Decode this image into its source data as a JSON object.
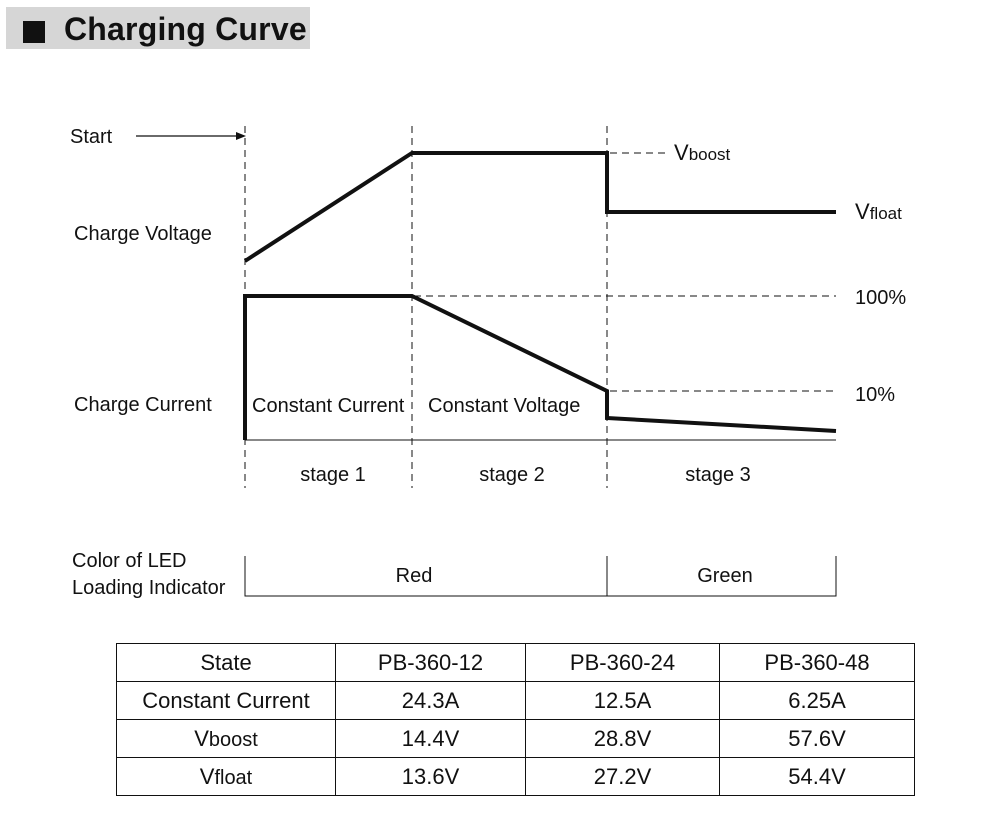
{
  "title": "Charging Curve",
  "diagram": {
    "start_label": "Start",
    "charge_voltage_label": "Charge Voltage",
    "charge_current_label": "Charge Current",
    "vboost_label": {
      "main": "V",
      "sub": "boost"
    },
    "vfloat_label": {
      "main": "V",
      "sub": "float"
    },
    "pct_100": "100%",
    "pct_10": "10%",
    "constant_current_label": "Constant Current",
    "constant_voltage_label": "Constant Voltage",
    "stages": [
      "stage 1",
      "stage 2",
      "stage 3"
    ]
  },
  "led": {
    "label_line1": "Color of LED",
    "label_line2": "Loading Indicator",
    "red": "Red",
    "green": "Green"
  },
  "table": {
    "headers": [
      "State",
      "PB-360-12",
      "PB-360-24",
      "PB-360-48"
    ],
    "rows": [
      {
        "state": "Constant Current",
        "values": [
          "24.3A",
          "12.5A",
          "6.25A"
        ]
      },
      {
        "state": {
          "main": "V",
          "sub": "boost"
        },
        "values": [
          "14.4V",
          "28.8V",
          "57.6V"
        ]
      },
      {
        "state": {
          "main": "V",
          "sub": "float"
        },
        "values": [
          "13.6V",
          "27.2V",
          "54.4V"
        ]
      }
    ]
  },
  "colors": {
    "line": "#111111",
    "title_bg": "#d6d6d6"
  }
}
